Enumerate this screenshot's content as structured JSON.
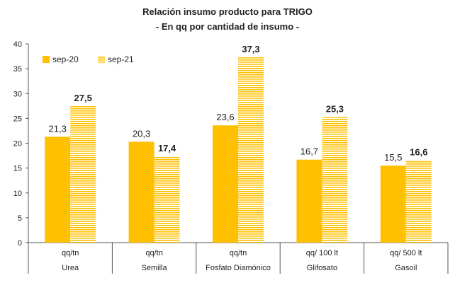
{
  "chart_data": {
    "type": "bar",
    "title": "Relación insumo producto para TRIGO",
    "subtitle": "- En qq por cantidad de insumo -",
    "units": [
      "qq/tn",
      "qq/tn",
      "qq/tn",
      "qq/ 100 lt",
      "qq/ 500 lt"
    ],
    "categories": [
      "Urea",
      "Semilla",
      "Fosfato Diamónico",
      "Glifosato",
      "Gasoil"
    ],
    "series": [
      {
        "name": "sep-20",
        "values": [
          21.3,
          20.3,
          23.6,
          16.7,
          15.5
        ],
        "labels": [
          "21,3",
          "20,3",
          "23,6",
          "16,7",
          "15,5"
        ],
        "color": "#FFC000",
        "pattern": "solid"
      },
      {
        "name": "sep-21",
        "values": [
          27.5,
          17.4,
          37.3,
          25.3,
          16.6
        ],
        "labels": [
          "27,5",
          "17,4",
          "37,3",
          "25,3",
          "16,6"
        ],
        "color": "#FFC000",
        "pattern": "horizontal-stripes"
      }
    ],
    "ylim": [
      0,
      40
    ],
    "yticks": [
      0,
      5,
      10,
      15,
      20,
      25,
      30,
      35,
      40
    ],
    "grid": false,
    "legend_position": "top-left"
  }
}
